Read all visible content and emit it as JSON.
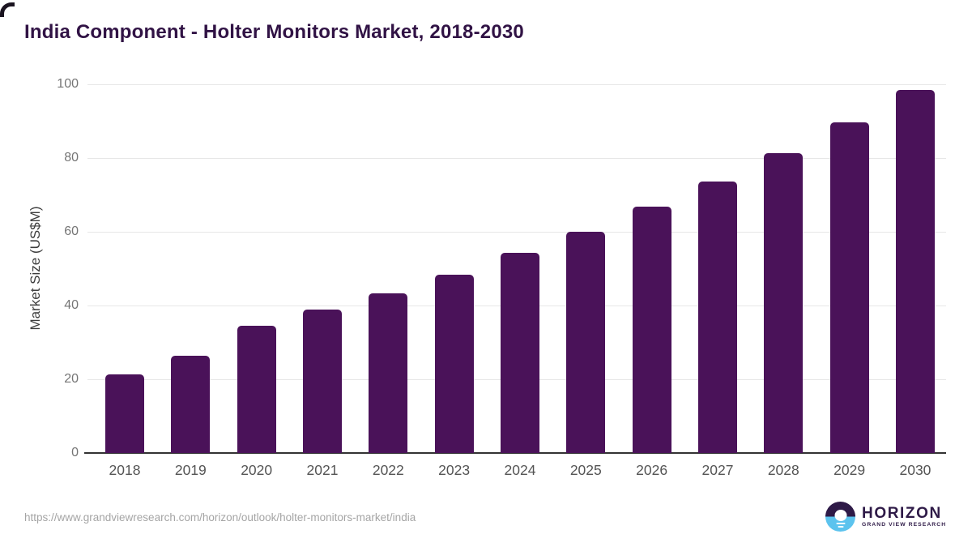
{
  "header": {
    "title": "India Component - Holter Monitors Market, 2018-2030"
  },
  "chart_data": {
    "type": "bar",
    "title": "India Component - Holter Monitors Market, 2018-2030",
    "categories": [
      "2018",
      "2019",
      "2020",
      "2021",
      "2022",
      "2023",
      "2024",
      "2025",
      "2026",
      "2027",
      "2028",
      "2029",
      "2030"
    ],
    "values": [
      21.3,
      26.4,
      34.4,
      38.8,
      43.3,
      48.4,
      54.2,
      60.1,
      66.8,
      73.7,
      81.4,
      89.6,
      98.4
    ],
    "xlabel": "",
    "ylabel": "Market Size (US$M)",
    "ylim": [
      0,
      100
    ],
    "yticks": [
      0,
      20,
      40,
      60,
      80,
      100
    ],
    "grid": "horizontal",
    "legend": "none",
    "bar_color": "#4a1259"
  },
  "footer": {
    "source_url": "https://www.grandviewresearch.com/horizon/outlook/holter-monitors-market/india",
    "logo": {
      "name": "HORIZON",
      "tagline": "GRAND VIEW RESEARCH"
    }
  },
  "colors": {
    "bar": "#4a1259",
    "title": "#311345",
    "gridline": "#e7e7e7",
    "axis_line": "#333333",
    "y_tick": "#757575",
    "x_tick": "#545454",
    "source_url": "#a5a5a5",
    "logo_purple": "#2e1a47",
    "logo_blue": "#5cc3ee"
  }
}
